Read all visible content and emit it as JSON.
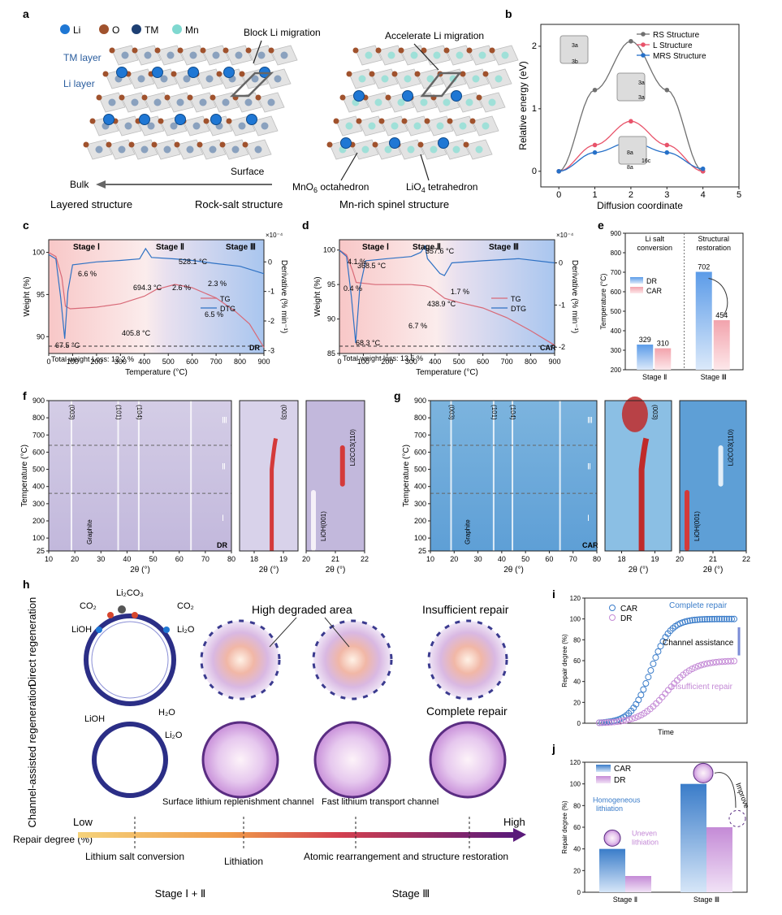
{
  "panels": {
    "a": "a",
    "b": "b",
    "c": "c",
    "d": "d",
    "e": "e",
    "f": "f",
    "g": "g",
    "h": "h",
    "i": "i",
    "j": "j"
  },
  "a": {
    "legend": [
      {
        "label": "Li",
        "color": "#1f77d4"
      },
      {
        "label": "O",
        "color": "#a0522d"
      },
      {
        "label": "TM",
        "color": "#1d3f73"
      },
      {
        "label": "Mn",
        "color": "#7fd8d0"
      }
    ],
    "tm_layer": "TM layer",
    "li_layer": "Li layer",
    "block": "Block Li migration",
    "accelerate": "Accelerate Li migration",
    "bulk": "Bulk",
    "surface": "Surface",
    "layered": "Layered structure",
    "rocksalt": "Rock-salt structure",
    "spinel": "Mn-rich spinel structure",
    "mno6_pre": "MnO",
    "mno6_sub": "6",
    "mno6_post": " octahedron",
    "lio4_pre": "LiO",
    "lio4_sub": "4",
    "lio4_post": " tetrahedron"
  },
  "chart_data": [
    {
      "panel": "b",
      "type": "line",
      "xlabel": "Diffusion coordinate",
      "ylabel": "Relative energy (eV)",
      "xlim": [
        -0.5,
        5
      ],
      "ylim": [
        -0.25,
        2.35
      ],
      "xticks": [
        "0",
        "1",
        "2",
        "3",
        "4",
        "5"
      ],
      "yticks": [
        "0",
        "1",
        "2"
      ],
      "series": [
        {
          "name": "RS Structure",
          "color": "#707070",
          "x": [
            0,
            1,
            2,
            3,
            4
          ],
          "y": [
            0,
            1.3,
            2.08,
            1.3,
            0
          ]
        },
        {
          "name": "L Structure",
          "color": "#e8536a",
          "x": [
            0,
            1,
            2,
            3,
            4
          ],
          "y": [
            0,
            0.42,
            0.8,
            0.42,
            0
          ]
        },
        {
          "name": "MRS Structure",
          "color": "#2670c8",
          "x": [
            0,
            1,
            2,
            3,
            4
          ],
          "y": [
            0,
            0.3,
            0.47,
            0.3,
            0.04
          ]
        }
      ],
      "site_labels": [
        "3a",
        "3b",
        "3a",
        "3a",
        "8a",
        "16c",
        "8a"
      ]
    },
    {
      "panel": "c",
      "type": "line",
      "sample": "DR",
      "xlabel": "Temperature (°C)",
      "ylabel": "Weight (%)",
      "y2label": "Derivative (% min⁻¹)",
      "y2scale": "×10⁻⁴",
      "xlim": [
        0,
        900
      ],
      "ylim": [
        88,
        101.5
      ],
      "y2lim": [
        -3.1,
        0.75
      ],
      "xticks": [
        "0",
        "100",
        "200",
        "300",
        "400",
        "500",
        "600",
        "700",
        "800",
        "900"
      ],
      "yticks": [
        "90",
        "95",
        "100"
      ],
      "y2ticks": [
        "0",
        "-1",
        "-2",
        "-3"
      ],
      "stages": [
        "Stage Ⅰ",
        "Stage Ⅱ",
        "Stage Ⅲ"
      ],
      "series": [
        {
          "name": "TG",
          "color": "#d86a78"
        },
        {
          "name": "DTG",
          "color": "#2f72c4"
        }
      ],
      "annotations": [
        "6.6 %",
        "405.8 °C",
        "528.1 °C",
        "694.3 °C",
        "2.6 %",
        "2.3 %",
        "6.5 %",
        "67.5 °C",
        "Total weight Loss: 12.2 %"
      ]
    },
    {
      "panel": "d",
      "type": "line",
      "sample": "CAR",
      "xlabel": "Temperature (°C)",
      "ylabel": "Weight (%)",
      "y2label": "Derivative (% min⁻¹)",
      "y2scale": "×10⁻⁴",
      "xlim": [
        0,
        900
      ],
      "ylim": [
        85,
        101.5
      ],
      "y2lim": [
        -2.15,
        0.55
      ],
      "xticks": [
        "0",
        "100",
        "200",
        "300",
        "400",
        "500",
        "600",
        "700",
        "800",
        "900"
      ],
      "yticks": [
        "85",
        "90",
        "95",
        "100"
      ],
      "y2ticks": [
        "0",
        "-1",
        "-2"
      ],
      "stages": [
        "Stage Ⅰ",
        "Stage Ⅱ",
        "Stage Ⅲ"
      ],
      "series": [
        {
          "name": "TG",
          "color": "#d86a78"
        },
        {
          "name": "DTG",
          "color": "#2f72c4"
        }
      ],
      "annotations": [
        "4.1 %",
        "357.6 °C",
        "368.5 °C",
        "438.9 °C",
        "0.4 %",
        "1.7 %",
        "6.7 %",
        "68.3 °C",
        "Total weight loss: 13.5 %"
      ]
    },
    {
      "panel": "e",
      "type": "bar",
      "ylabel": "Temperature (°C)",
      "ylim": [
        200,
        900
      ],
      "yticks": [
        "200",
        "300",
        "400",
        "500",
        "600",
        "700",
        "800",
        "900"
      ],
      "categories": [
        "Stage Ⅱ",
        "Stage Ⅲ"
      ],
      "series": [
        {
          "name": "DR",
          "color": "#5b9be8",
          "values": [
            329,
            702
          ]
        },
        {
          "name": "CAR",
          "color": "#f2a3ac",
          "values": [
            310,
            454
          ]
        }
      ],
      "group_labels": [
        "Li salt conversion",
        "Structural restoration"
      ]
    },
    {
      "panel": "f",
      "type": "heatmap",
      "sample": "DR",
      "xlabel": "2θ (°)",
      "ylabel": "Temperature (°C)",
      "xticks": [
        "10",
        "20",
        "30",
        "40",
        "50",
        "60",
        "70",
        "80"
      ],
      "yticks": [
        "25",
        "100",
        "200",
        "300",
        "400",
        "500",
        "600",
        "700",
        "800",
        "900"
      ],
      "xticks2": [
        "18",
        "19"
      ],
      "xticks3": [
        "20",
        "21",
        "22"
      ],
      "peaks": [
        "(003)",
        "(101)",
        "(104)",
        "Graphite",
        "(003)",
        "LiOH(001)",
        "Li2CO3(110)"
      ],
      "stages": [
        "Ⅲ",
        "Ⅱ",
        "Ⅰ"
      ]
    },
    {
      "panel": "g",
      "type": "heatmap",
      "sample": "CAR",
      "xlabel": "2θ (°)",
      "ylabel": "Temperature (°C)",
      "xticks": [
        "10",
        "20",
        "30",
        "40",
        "50",
        "60",
        "70",
        "80"
      ],
      "yticks": [
        "25",
        "100",
        "200",
        "300",
        "400",
        "500",
        "600",
        "700",
        "800",
        "900"
      ],
      "xticks2": [
        "18",
        "19"
      ],
      "xticks3": [
        "20",
        "21",
        "22"
      ],
      "peaks": [
        "(003)",
        "(101)",
        "(104)",
        "Graphite",
        "(003)",
        "LiOH(001)",
        "Li2CO3(110)"
      ],
      "stages": [
        "Ⅲ",
        "Ⅱ",
        "Ⅰ"
      ]
    },
    {
      "panel": "i",
      "type": "line",
      "xlabel": "Time",
      "ylabel": "Repair degree (%)",
      "ylim": [
        0,
        120
      ],
      "yticks": [
        "0",
        "20",
        "40",
        "60",
        "80",
        "100",
        "120"
      ],
      "series": [
        {
          "name": "CAR",
          "color": "#3a7cc9",
          "plateau": 100
        },
        {
          "name": "DR",
          "color": "#c48ad6",
          "plateau": 60
        }
      ],
      "annotations": [
        "Complete repair",
        "Channel assistance",
        "Insufficient repair"
      ]
    },
    {
      "panel": "j",
      "type": "bar",
      "ylabel": "Repair degree (%)",
      "ylim": [
        0,
        120
      ],
      "yticks": [
        "0",
        "20",
        "40",
        "60",
        "80",
        "100",
        "120"
      ],
      "categories": [
        "Stage Ⅱ",
        "Stage Ⅲ"
      ],
      "series": [
        {
          "name": "CAR",
          "color": "#3a7cc9",
          "values": [
            40,
            100
          ]
        },
        {
          "name": "DR",
          "color": "#c48ad6",
          "values": [
            15,
            60
          ]
        }
      ],
      "annotations": [
        "Homogeneous lithiation",
        "Uneven lithiation",
        "Improve"
      ]
    }
  ],
  "h": {
    "row1": "Direct regeneration",
    "row2": "Channel-assisted regeneration",
    "li2co3": "Li₂CO₃",
    "co2": "CO₂",
    "lioh": "LiOH",
    "li2o": "Li₂O",
    "h2o": "H₂O",
    "high_degraded": "High degraded area",
    "insufficient": "Insufficient repair",
    "complete": "Complete repair",
    "surface_channel": "Surface lithium replenishment channel",
    "fast_channel": "Fast lithium transport channel",
    "repair_degree": "Repair degree (%)",
    "low": "Low",
    "high": "High",
    "steps": [
      "Lithium salt conversion",
      "Lithiation",
      "Atomic rearrangement and structure restoration"
    ],
    "stage12": "Stage Ⅰ + Ⅱ",
    "stage3": "Stage Ⅲ"
  }
}
